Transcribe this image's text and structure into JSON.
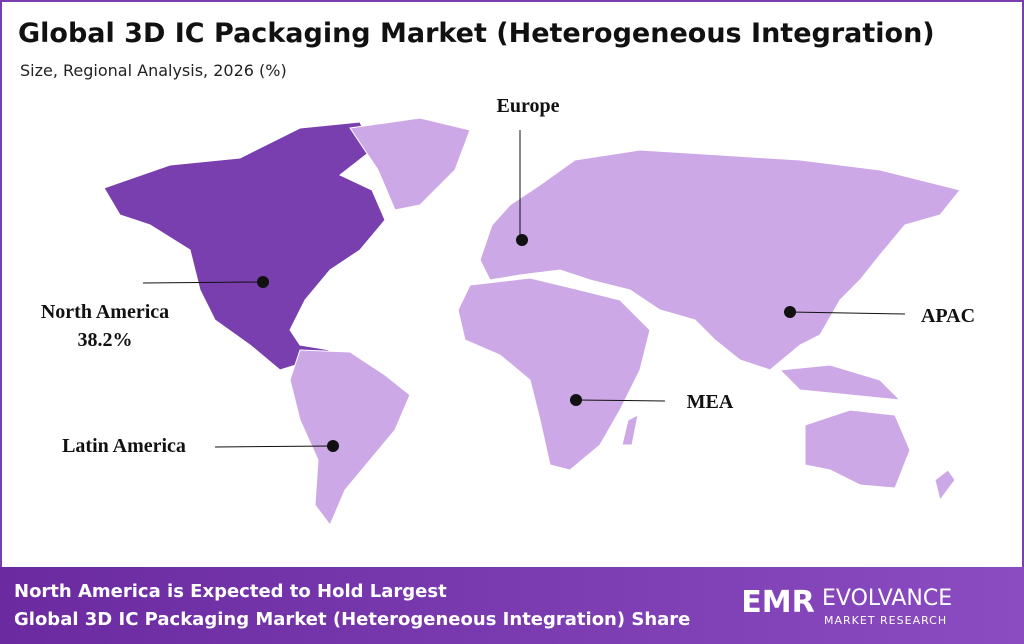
{
  "header": {
    "title": "Global  3D IC Packaging Market (Heterogeneous Integration)",
    "subtitle": "Size, Regional Analysis, 2026 (%)"
  },
  "regions": [
    {
      "name": "Europe"
    },
    {
      "name": "North America",
      "share": "38.2%"
    },
    {
      "name": "APAC"
    },
    {
      "name": "MEA"
    },
    {
      "name": "Latin America"
    }
  ],
  "footer": {
    "lines": [
      "North America is Expected to Hold Largest",
      "Global 3D IC Packaging Market (Heterogeneous Integration) Share"
    ]
  },
  "logo": {
    "mark": "EMR",
    "name": "EVOLVANCE",
    "tagline": "MARKET RESEARCH"
  }
}
